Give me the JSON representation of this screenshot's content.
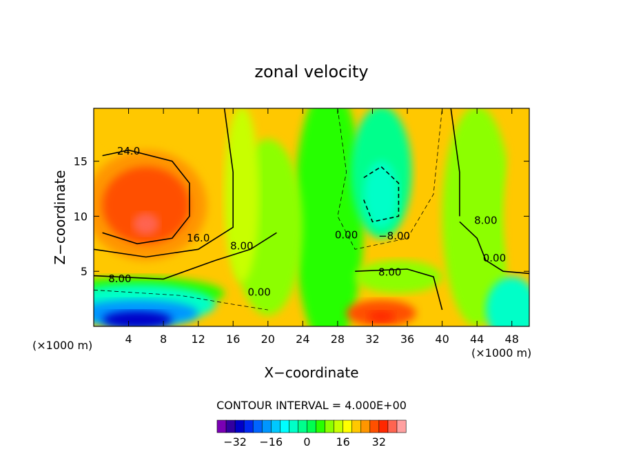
{
  "chart_data": {
    "type": "heatmap",
    "title": "zonal velocity",
    "xlabel": "X−coordinate",
    "ylabel": "Z−coordinate",
    "x_unit_left": "(×1000 m)",
    "x_unit_right": "(×1000 m)",
    "xlim": [
      0,
      50
    ],
    "ylim": [
      0,
      19.8
    ],
    "x_ticks": [
      "4",
      "8",
      "12",
      "16",
      "20",
      "24",
      "28",
      "32",
      "36",
      "40",
      "44",
      "48"
    ],
    "y_ticks": [
      "5",
      "10",
      "15"
    ],
    "contour_interval_text": "CONTOUR INTERVAL = 4.000E+00",
    "colorbar": {
      "tick_labels": [
        "−32",
        "−16",
        "0",
        "16",
        "32"
      ],
      "tick_values": [
        -32,
        -16,
        0,
        16,
        32
      ],
      "levels": [
        -40,
        -36,
        -32,
        -28,
        -24,
        -20,
        -16,
        -12,
        -8,
        -4,
        0,
        4,
        8,
        12,
        16,
        20,
        24,
        28,
        32,
        36,
        40
      ],
      "colors": [
        "#7a00b4",
        "#3200a0",
        "#0000c8",
        "#0028f0",
        "#0064ff",
        "#0096ff",
        "#00c8ff",
        "#00ffff",
        "#00ffc8",
        "#00ff8c",
        "#00ff50",
        "#28ff00",
        "#8cff00",
        "#c8ff00",
        "#ffff00",
        "#ffc800",
        "#ff9600",
        "#ff5000",
        "#ff2800",
        "#ff6450",
        "#ffa0a0"
      ]
    },
    "contour_labels": [
      {
        "text": "24.0",
        "x": 4,
        "y": 15.6
      },
      {
        "text": "16.0",
        "x": 12,
        "y": 7.7
      },
      {
        "text": "8.00",
        "x": 17,
        "y": 7.0
      },
      {
        "text": "8.00",
        "x": 3,
        "y": 4.0
      },
      {
        "text": "0.00",
        "x": 19,
        "y": 2.8
      },
      {
        "text": "0.00",
        "x": 29,
        "y": 8.0
      },
      {
        "text": "−8.00",
        "x": 34.5,
        "y": 7.9
      },
      {
        "text": "8.00",
        "x": 34,
        "y": 4.6
      },
      {
        "text": "8.00",
        "x": 45,
        "y": 9.3
      },
      {
        "text": "0.00",
        "x": 46,
        "y": 5.9
      }
    ]
  },
  "palette": {
    "background": "#ffffff"
  }
}
